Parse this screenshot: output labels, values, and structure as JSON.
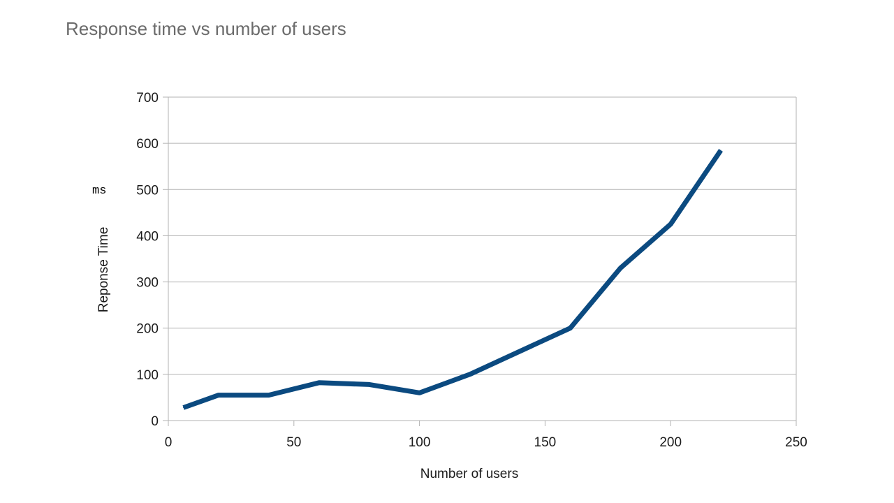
{
  "page": {
    "title": "Response time vs number of users",
    "unit_label": "ms"
  },
  "chart_data": {
    "type": "line",
    "title": "",
    "xlabel": "Number of users",
    "ylabel": "Reponse Time",
    "xlim": [
      0,
      250
    ],
    "ylim": [
      0,
      700
    ],
    "xticks": [
      0,
      50,
      100,
      150,
      200,
      250
    ],
    "yticks": [
      0,
      100,
      200,
      300,
      400,
      500,
      600,
      700
    ],
    "grid": true,
    "legend": "none",
    "line_color": "#0b4a80",
    "series": [
      {
        "x": [
          6,
          20,
          40,
          60,
          80,
          100,
          120,
          140,
          160,
          180,
          200,
          220
        ],
        "y": [
          28,
          55,
          55,
          82,
          78,
          60,
          100,
          150,
          200,
          330,
          425,
          585
        ]
      }
    ]
  }
}
